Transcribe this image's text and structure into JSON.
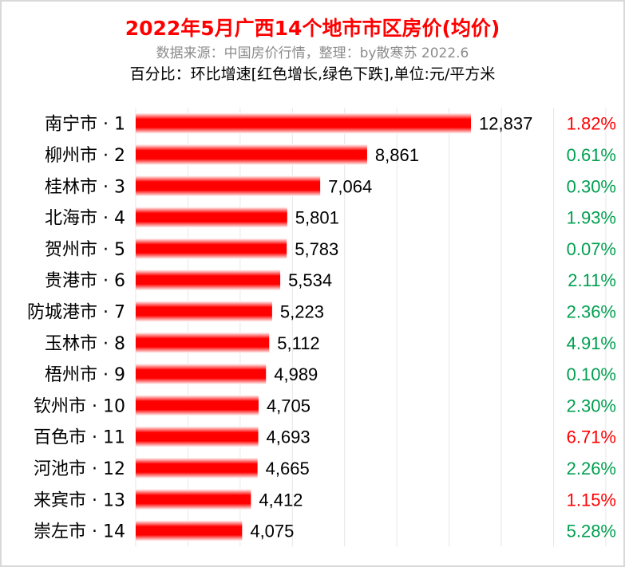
{
  "chart_data": {
    "type": "bar",
    "orientation": "horizontal",
    "title": "2022年5月广西14个地市市区房价(均价)",
    "subtitle": "数据来源：中国房价行情，整理：by散寒苏  2022.6",
    "note": "百分比：环比增速[红色增长,绿色下跌],单位:元/平方米",
    "xlim": [
      0,
      18000
    ],
    "grid_step": 2000,
    "grid": true,
    "categories": [
      "南宁市 · 1",
      "柳州市 · 2",
      "桂林市 · 3",
      "北海市 · 4",
      "贺州市 · 5",
      "贵港市 · 6",
      "防城港市 · 7",
      "玉林市 · 8",
      "梧州市 · 9",
      "钦州市 · 10",
      "百色市 · 11",
      "河池市 · 12",
      "来宾市 · 13",
      "崇左市 · 14"
    ],
    "values": [
      12837,
      8861,
      7064,
      5801,
      5783,
      5534,
      5223,
      5112,
      4989,
      4705,
      4693,
      4665,
      4412,
      4075
    ],
    "value_labels": [
      "12,837",
      "8,861",
      "7,064",
      "5,801",
      "5,783",
      "5,534",
      "5,223",
      "5,112",
      "4,989",
      "4,705",
      "4,693",
      "4,665",
      "4,412",
      "4,075"
    ],
    "changes": [
      "1.82%",
      "0.61%",
      "0.30%",
      "1.93%",
      "0.07%",
      "2.11%",
      "2.36%",
      "4.91%",
      "0.10%",
      "2.30%",
      "6.71%",
      "2.26%",
      "1.15%",
      "5.28%"
    ],
    "change_colors": [
      "red",
      "green",
      "green",
      "green",
      "green",
      "green",
      "green",
      "green",
      "green",
      "green",
      "red",
      "green",
      "red",
      "green"
    ],
    "colors": {
      "bar": "#ff0000",
      "red": "#ff0000",
      "green": "#00a050",
      "grid": "#e6e6e6"
    }
  }
}
